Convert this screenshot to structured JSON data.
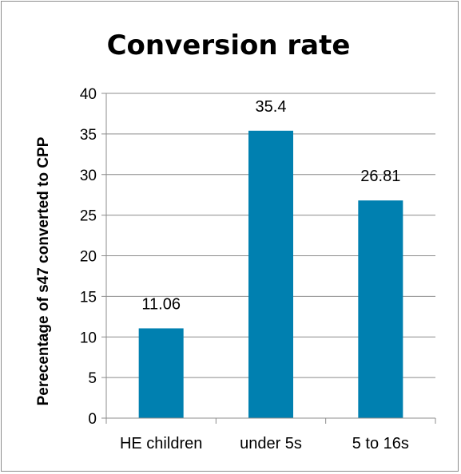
{
  "chart_data": {
    "type": "bar",
    "title": "Conversion rate",
    "xlabel": "",
    "ylabel": "Perecentage of s47 converted to CPP",
    "categories": [
      "HE children",
      "under 5s",
      "5 to 16s"
    ],
    "values": [
      11.06,
      35.4,
      26.81
    ],
    "data_labels": [
      "11.06",
      "35.4",
      "26.81"
    ],
    "ylim": [
      0,
      40
    ],
    "yticks": [
      0,
      5,
      10,
      15,
      20,
      25,
      30,
      35,
      40
    ],
    "grid": true,
    "legend": "none",
    "bar_color": "#0080b0"
  }
}
